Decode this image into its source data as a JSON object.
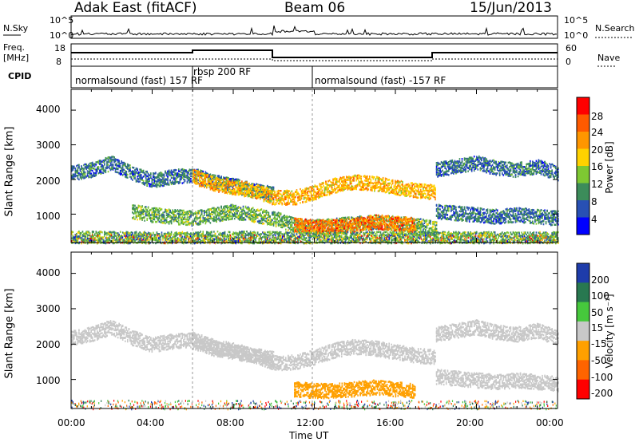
{
  "header": {
    "station": "Adak East (fitACF)",
    "beam": "Beam 06",
    "date": "15/Jun/2013"
  },
  "top_panels": {
    "nsky_label": "N.Sky",
    "nsearch_label": "N.Search",
    "nsky_ticks": [
      "10^5",
      "10^0"
    ],
    "nsearch_ticks": [
      "10^5",
      "10^0"
    ],
    "freq_label": "Freq.",
    "freq_unit": "[MHz]",
    "freq_ticks": [
      "18",
      "8"
    ],
    "nave_label": "Nave",
    "nave_ticks": [
      "60",
      "0"
    ],
    "cpid_label": "CPID",
    "cpid_segments": [
      {
        "label": "normalsound (fast) 157 RF",
        "start_hour": 0,
        "end_hour": 6
      },
      {
        "label": "rbsp 200 RF",
        "start_hour": 6,
        "end_hour": 12
      },
      {
        "label": "normalsound (fast) -157 RF",
        "start_hour": 12,
        "end_hour": 24
      }
    ]
  },
  "colorbars": {
    "power": {
      "label": "Power [dB]",
      "ticks": [
        "28",
        "24",
        "20",
        "16",
        "12",
        "8",
        "4"
      ],
      "colors": [
        "#ff0000",
        "#ff5a00",
        "#ff9600",
        "#ffd200",
        "#7ec832",
        "#3c8c5a",
        "#2850b4",
        "#0000ff"
      ]
    },
    "velocity": {
      "label": "Velocity [m s⁻¹]",
      "ticks": [
        "200",
        "100",
        "50",
        "15",
        "-15",
        "-50",
        "-100",
        "-200"
      ],
      "colors": [
        "#1e3caa",
        "#287850",
        "#46c83c",
        "#c8c8c8",
        "#ffa000",
        "#ff6400",
        "#ff0000"
      ]
    }
  },
  "chart_data": [
    {
      "type": "heatmap",
      "name": "power",
      "ylabel": "Slant Range [km]",
      "xlabel": "",
      "yticks": [
        "4000",
        "3000",
        "2000",
        "1000"
      ],
      "ylim": [
        180,
        4600
      ],
      "xlim": [
        0,
        24
      ],
      "bands": [
        {
          "x": [
            0.0,
            1.0,
            2.0,
            3.0,
            4.0,
            5.0,
            6.0,
            7.0,
            8.0,
            9.0,
            10.0
          ],
          "y": [
            2200,
            2300,
            2500,
            2200,
            2000,
            2100,
            2150,
            1950,
            1850,
            1700,
            1600
          ],
          "level": 8
        },
        {
          "x": [
            6.0,
            7.0,
            8.0,
            9.0,
            10.0,
            11.0,
            12.0,
            13.0,
            14.0,
            15.0,
            16.0,
            17.0,
            18.0
          ],
          "y": [
            2100,
            1900,
            1800,
            1700,
            1500,
            1500,
            1650,
            1850,
            1950,
            1900,
            1800,
            1700,
            1650
          ],
          "level": 20
        },
        {
          "x": [
            3.0,
            4.0,
            5.0,
            6.0,
            7.0,
            8.0,
            9.0,
            10.0,
            11.0,
            12.0,
            13.0,
            14.0,
            15.0,
            16.0,
            17.0,
            18.0
          ],
          "y": [
            1100,
            1000,
            950,
            900,
            1000,
            1100,
            1000,
            900,
            700,
            650,
            700,
            750,
            800,
            750,
            700,
            600
          ],
          "level": 12
        },
        {
          "x": [
            11.0,
            12.0,
            13.0,
            14.0,
            15.0,
            16.0,
            17.0
          ],
          "y": [
            700,
            650,
            650,
            700,
            800,
            750,
            700
          ],
          "level": 24
        },
        {
          "x": [
            18.0,
            19.0,
            20.0,
            21.0,
            22.0,
            23.0,
            24.0
          ],
          "y": [
            2300,
            2400,
            2500,
            2350,
            2300,
            2400,
            2200
          ],
          "level": 8
        },
        {
          "x": [
            18.0,
            19.0,
            20.0,
            21.0,
            22.0,
            23.0,
            24.0
          ],
          "y": [
            1100,
            1050,
            1000,
            950,
            1000,
            950,
            900
          ],
          "level": 8
        },
        {
          "x": [
            0.0,
            4.0,
            8.0,
            12.0,
            16.0,
            20.0,
            24.0
          ],
          "y": [
            320,
            300,
            320,
            300,
            310,
            300,
            300
          ],
          "level": 12
        }
      ]
    },
    {
      "type": "heatmap",
      "name": "velocity",
      "ylabel": "Slant Range [km]",
      "xlabel": "Time UT",
      "yticks": [
        "4000",
        "3000",
        "2000",
        "1000"
      ],
      "xticks": [
        "00:00",
        "04:00",
        "08:00",
        "12:00",
        "16:00",
        "20:00",
        "00:00"
      ],
      "ylim": [
        180,
        4600
      ],
      "xlim": [
        0,
        24
      ],
      "bands": [
        {
          "x": [
            0.0,
            1.0,
            2.0,
            3.0,
            4.0,
            5.0,
            6.0,
            7.0,
            8.0,
            9.0,
            10.0
          ],
          "y": [
            2200,
            2300,
            2500,
            2200,
            2000,
            2100,
            2150,
            1950,
            1850,
            1700,
            1600
          ],
          "level": 0
        },
        {
          "x": [
            6.0,
            7.0,
            8.0,
            9.0,
            10.0,
            11.0,
            12.0,
            13.0,
            14.0,
            15.0,
            16.0,
            17.0,
            18.0
          ],
          "y": [
            2100,
            1900,
            1800,
            1700,
            1500,
            1500,
            1650,
            1850,
            1950,
            1900,
            1800,
            1700,
            1650
          ],
          "level": 0
        },
        {
          "x": [
            11.0,
            12.0,
            13.0,
            14.0,
            15.0,
            16.0,
            17.0
          ],
          "y": [
            750,
            700,
            700,
            750,
            800,
            750,
            700
          ],
          "level": -30
        },
        {
          "x": [
            18.0,
            19.0,
            20.0,
            21.0,
            22.0,
            23.0,
            24.0
          ],
          "y": [
            2300,
            2400,
            2500,
            2350,
            2300,
            2400,
            2200
          ],
          "level": 0
        },
        {
          "x": [
            18.0,
            19.0,
            20.0,
            21.0,
            22.0,
            23.0,
            24.0
          ],
          "y": [
            1100,
            1050,
            1000,
            950,
            1000,
            950,
            900
          ],
          "level": 0
        }
      ]
    }
  ]
}
